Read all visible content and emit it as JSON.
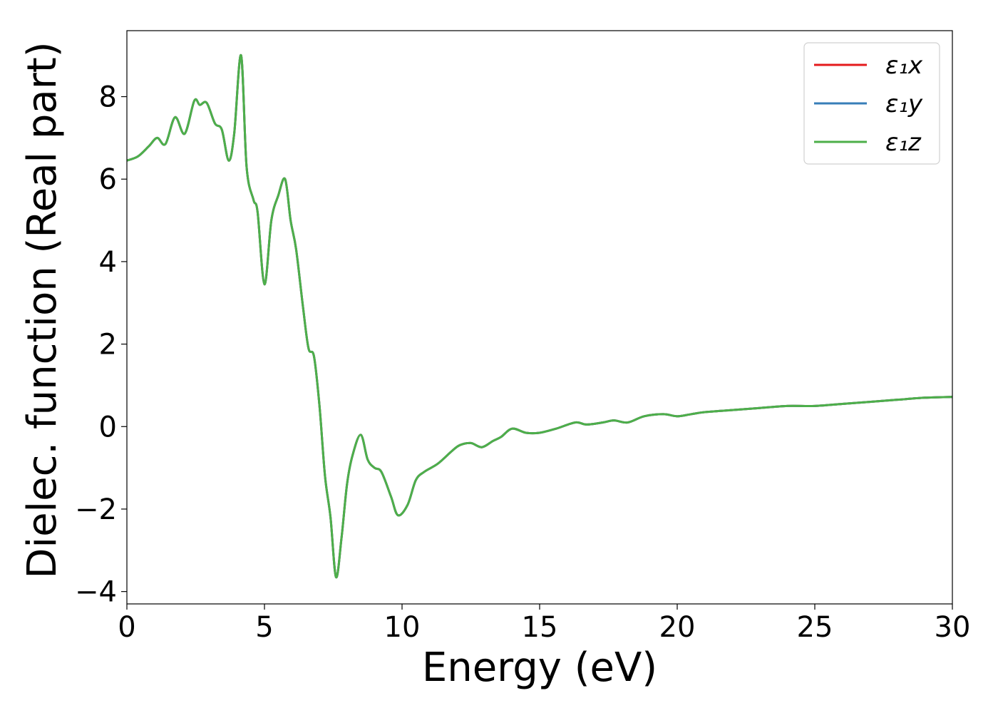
{
  "chart_data": {
    "type": "line",
    "xlabel": "Energy (eV)",
    "ylabel": "Dielec. function (Real part)",
    "xlim": [
      0,
      30
    ],
    "ylim": [
      -4.3,
      9.6
    ],
    "xticks": [
      0,
      5,
      10,
      15,
      20,
      25,
      30
    ],
    "yticks": [
      -4,
      -2,
      0,
      2,
      4,
      6,
      8
    ],
    "xtick_labels": [
      "0",
      "5",
      "10",
      "15",
      "20",
      "25",
      "30"
    ],
    "ytick_labels": [
      "−4",
      "−2",
      "0",
      "2",
      "4",
      "6",
      "8"
    ],
    "grid": false,
    "legend_position": "top-right",
    "series": [
      {
        "name": "ε₁x",
        "color": "#e41a1c",
        "x": [
          0,
          0.4,
          0.8,
          1.1,
          1.4,
          1.75,
          2.1,
          2.45,
          2.65,
          2.9,
          3.2,
          3.45,
          3.7,
          3.9,
          4.15,
          4.35,
          4.6,
          4.75,
          5.0,
          5.25,
          5.5,
          5.75,
          5.95,
          6.15,
          6.4,
          6.6,
          6.8,
          7.0,
          7.2,
          7.4,
          7.6,
          7.8,
          8.0,
          8.2,
          8.5,
          8.75,
          9.0,
          9.25,
          9.6,
          9.85,
          10.2,
          10.5,
          10.8,
          11.3,
          11.8,
          12.1,
          12.5,
          12.9,
          13.3,
          13.6,
          14.0,
          14.5,
          15.0,
          15.6,
          16.3,
          16.7,
          17.3,
          17.7,
          18.2,
          18.8,
          19.5,
          20.0,
          20.5,
          21.0,
          22.0,
          23.0,
          24.0,
          25.0,
          26.0,
          27.0,
          28.0,
          29.0,
          30.0
        ],
        "values": [
          6.45,
          6.55,
          6.8,
          7.0,
          6.85,
          7.5,
          7.1,
          7.9,
          7.8,
          7.85,
          7.35,
          7.2,
          6.45,
          7.1,
          9.0,
          6.3,
          5.5,
          5.2,
          3.45,
          5.0,
          5.6,
          6.0,
          5.0,
          4.3,
          2.9,
          1.9,
          1.7,
          0.5,
          -1.2,
          -2.2,
          -3.65,
          -2.7,
          -1.4,
          -0.7,
          -0.2,
          -0.8,
          -1.0,
          -1.1,
          -1.7,
          -2.15,
          -1.9,
          -1.3,
          -1.1,
          -0.9,
          -0.6,
          -0.45,
          -0.4,
          -0.5,
          -0.35,
          -0.25,
          -0.05,
          -0.15,
          -0.15,
          -0.05,
          0.1,
          0.05,
          0.1,
          0.15,
          0.1,
          0.25,
          0.3,
          0.25,
          0.3,
          0.35,
          0.4,
          0.45,
          0.5,
          0.5,
          0.55,
          0.6,
          0.65,
          0.7,
          0.72
        ]
      },
      {
        "name": "ε₁y",
        "color": "#377eb8",
        "x": [
          0,
          0.4,
          0.8,
          1.1,
          1.4,
          1.75,
          2.1,
          2.45,
          2.65,
          2.9,
          3.2,
          3.45,
          3.7,
          3.9,
          4.15,
          4.35,
          4.6,
          4.75,
          5.0,
          5.25,
          5.5,
          5.75,
          5.95,
          6.15,
          6.4,
          6.6,
          6.8,
          7.0,
          7.2,
          7.4,
          7.6,
          7.8,
          8.0,
          8.2,
          8.5,
          8.75,
          9.0,
          9.25,
          9.6,
          9.85,
          10.2,
          10.5,
          10.8,
          11.3,
          11.8,
          12.1,
          12.5,
          12.9,
          13.3,
          13.6,
          14.0,
          14.5,
          15.0,
          15.6,
          16.3,
          16.7,
          17.3,
          17.7,
          18.2,
          18.8,
          19.5,
          20.0,
          20.5,
          21.0,
          22.0,
          23.0,
          24.0,
          25.0,
          26.0,
          27.0,
          28.0,
          29.0,
          30.0
        ],
        "values": [
          6.45,
          6.55,
          6.8,
          7.0,
          6.85,
          7.5,
          7.1,
          7.9,
          7.8,
          7.85,
          7.35,
          7.2,
          6.45,
          7.1,
          9.0,
          6.3,
          5.5,
          5.2,
          3.45,
          5.0,
          5.6,
          6.0,
          5.0,
          4.3,
          2.9,
          1.9,
          1.7,
          0.5,
          -1.2,
          -2.2,
          -3.65,
          -2.7,
          -1.4,
          -0.7,
          -0.2,
          -0.8,
          -1.0,
          -1.1,
          -1.7,
          -2.15,
          -1.9,
          -1.3,
          -1.1,
          -0.9,
          -0.6,
          -0.45,
          -0.4,
          -0.5,
          -0.35,
          -0.25,
          -0.05,
          -0.15,
          -0.15,
          -0.05,
          0.1,
          0.05,
          0.1,
          0.15,
          0.1,
          0.25,
          0.3,
          0.25,
          0.3,
          0.35,
          0.4,
          0.45,
          0.5,
          0.5,
          0.55,
          0.6,
          0.65,
          0.7,
          0.72
        ]
      },
      {
        "name": "ε₁z",
        "color": "#4daf4a",
        "x": [
          0,
          0.4,
          0.8,
          1.1,
          1.4,
          1.75,
          2.1,
          2.45,
          2.65,
          2.9,
          3.2,
          3.45,
          3.7,
          3.9,
          4.15,
          4.35,
          4.6,
          4.75,
          5.0,
          5.25,
          5.5,
          5.75,
          5.95,
          6.15,
          6.4,
          6.6,
          6.8,
          7.0,
          7.2,
          7.4,
          7.6,
          7.8,
          8.0,
          8.2,
          8.5,
          8.75,
          9.0,
          9.25,
          9.6,
          9.85,
          10.2,
          10.5,
          10.8,
          11.3,
          11.8,
          12.1,
          12.5,
          12.9,
          13.3,
          13.6,
          14.0,
          14.5,
          15.0,
          15.6,
          16.3,
          16.7,
          17.3,
          17.7,
          18.2,
          18.8,
          19.5,
          20.0,
          20.5,
          21.0,
          22.0,
          23.0,
          24.0,
          25.0,
          26.0,
          27.0,
          28.0,
          29.0,
          30.0
        ],
        "values": [
          6.45,
          6.55,
          6.8,
          7.0,
          6.85,
          7.5,
          7.1,
          7.9,
          7.8,
          7.85,
          7.35,
          7.2,
          6.45,
          7.1,
          9.0,
          6.3,
          5.5,
          5.2,
          3.45,
          5.0,
          5.6,
          6.0,
          5.0,
          4.3,
          2.9,
          1.9,
          1.7,
          0.5,
          -1.2,
          -2.2,
          -3.65,
          -2.7,
          -1.4,
          -0.7,
          -0.2,
          -0.8,
          -1.0,
          -1.1,
          -1.7,
          -2.15,
          -1.9,
          -1.3,
          -1.1,
          -0.9,
          -0.6,
          -0.45,
          -0.4,
          -0.5,
          -0.35,
          -0.25,
          -0.05,
          -0.15,
          -0.15,
          -0.05,
          0.1,
          0.05,
          0.1,
          0.15,
          0.1,
          0.25,
          0.3,
          0.25,
          0.3,
          0.35,
          0.4,
          0.45,
          0.5,
          0.5,
          0.55,
          0.6,
          0.65,
          0.7,
          0.72
        ]
      }
    ]
  }
}
